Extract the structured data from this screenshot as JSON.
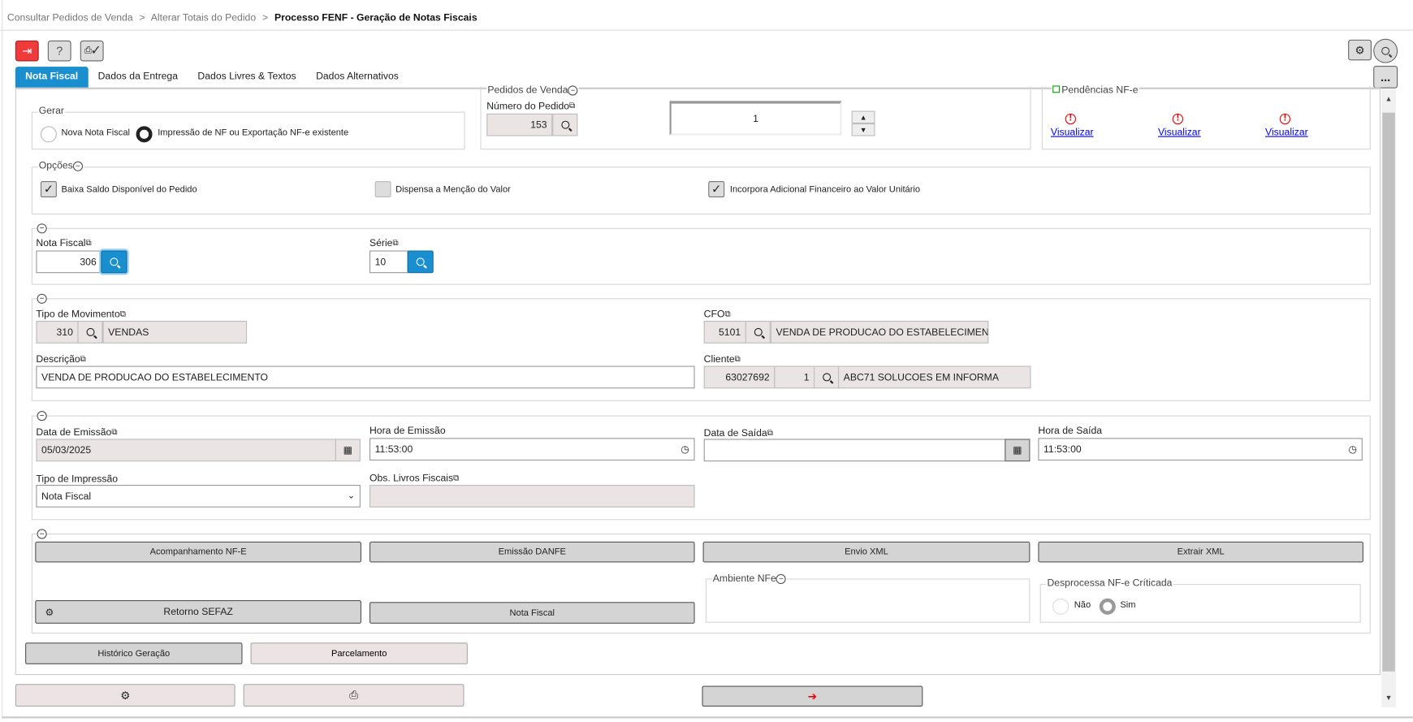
{
  "breadcrumb": {
    "items": [
      "Consultar Pedidos de Venda",
      "Alterar Totais do Pedido"
    ],
    "current": "Processo FENF - Geração de Notas Fiscais",
    "separator": ">"
  },
  "toolbar": {
    "exit_icon": "exit-icon",
    "help_label": "?",
    "print_icon": "print-sign-icon",
    "settings_icon": "gear-icon",
    "search_icon": "search-icon",
    "more_label": "..."
  },
  "tabs": [
    {
      "label": "Nota Fiscal",
      "active": true
    },
    {
      "label": "Dados da Entrega"
    },
    {
      "label": "Dados Livres & Textos"
    },
    {
      "label": "Dados Alternativos"
    }
  ],
  "gerar": {
    "legend": "Gerar",
    "options": [
      "Nova Nota Fiscal",
      "Impressão de NF ou Exportação NF-e existente"
    ],
    "selected": 1
  },
  "pedidos": {
    "legend": "Pedidos de Venda",
    "numero_label": "Número do Pedido",
    "numero_value": "153",
    "counter_value": "1",
    "up": "▲",
    "down": "▼"
  },
  "pendencias": {
    "legend": "Pendências NF-e",
    "links": [
      "Visualizar",
      "Visualizar",
      "Visualizar"
    ],
    "warn_glyph": "!"
  },
  "opcoes": {
    "legend": "Opções",
    "items": [
      {
        "label": "Baixa Saldo Disponível do Pedido",
        "checked": true
      },
      {
        "label": "Dispensa a Menção do Valor",
        "checked": false
      },
      {
        "label": "Incorpora Adicional Financeiro ao Valor Unitário",
        "checked": true
      }
    ]
  },
  "nota": {
    "nota_label": "Nota Fiscal",
    "nota_value": "306",
    "serie_label": "Série",
    "serie_value": "10"
  },
  "movimento": {
    "tipo_label": "Tipo de Movimento",
    "tipo_code": "310",
    "tipo_desc": "VENDAS",
    "cfo_label": "CFO",
    "cfo_code": "5101",
    "cfo_desc": "VENDA DE PRODUCAO DO ESTABELECIMENTO",
    "descricao_label": "Descrição",
    "descricao_value": "VENDA DE PRODUCAO DO ESTABELECIMENTO",
    "cliente_label": "Cliente",
    "cliente_code": "63027692",
    "cliente_seq": "1",
    "cliente_name": "ABC71 SOLUCOES EM INFORMA"
  },
  "datas": {
    "emissao_label": "Data de Emissão",
    "emissao_value": "05/03/2025",
    "hora_emissao_label": "Hora de Emissão",
    "hora_emissao_value": "11:53:00",
    "saida_label": "Data de Saída",
    "saida_value": "",
    "hora_saida_label": "Hora de Saída",
    "hora_saida_value": "11:53:00",
    "impressao_label": "Tipo de Impressão",
    "impressao_value": "Nota Fiscal",
    "obs_label": "Obs. Livros Fiscais",
    "obs_value": ""
  },
  "acoes": {
    "buttons": [
      "Acompanhamento NF-E",
      "Emissão DANFE",
      "Envio XML",
      "Extrair XML"
    ],
    "retorno": "Retorno SEFAZ",
    "nota_fiscal": "Nota Fiscal",
    "ambiente_legend": "Ambiente NFe",
    "desprocessa_legend": "Desprocessa NF-e Críticada",
    "desprocessa_options": [
      "Não",
      "Sim"
    ],
    "desprocessa_selected": 1
  },
  "footer": {
    "historico": "Histórico Geração",
    "parcelamento": "Parcelamento"
  },
  "colors": {
    "accent": "#1a8fd0",
    "exit": "#ef3b3b",
    "warn": "#e00000"
  }
}
